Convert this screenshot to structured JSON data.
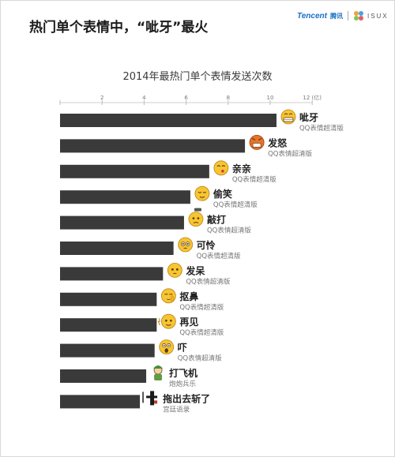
{
  "page": {
    "title": "热门单个表情中，“呲牙”最火",
    "brand_tencent": "Tencent",
    "brand_tencent_cn": "腾讯",
    "brand_isux": "ISUX"
  },
  "chart_data": {
    "type": "bar",
    "orientation": "horizontal",
    "title": "2014年最热门单个表情发送次数",
    "unit": "(亿)",
    "xlim": [
      0,
      12
    ],
    "ticks": [
      2,
      4,
      6,
      8,
      10,
      12
    ],
    "bar_color": "#3a3a3a",
    "categories": [
      "呲牙",
      "发怒",
      "亲亲",
      "偷笑",
      "敲打",
      "可怜",
      "发呆",
      "抠鼻",
      "再见",
      "吓",
      "打飞机",
      "拖出去斩了"
    ],
    "sublabels": [
      "QQ表情超清版",
      "QQ表情超清版",
      "QQ表情超清版",
      "QQ表情超清版",
      "QQ表情超清版",
      "QQ表情超清版",
      "QQ表情超清版",
      "QQ表情超清版",
      "QQ表情超清版",
      "QQ表情超清版",
      "炮炮兵乐",
      "宫廷语录"
    ],
    "icons": [
      "grin-face-icon",
      "angry-face-icon",
      "kiss-face-icon",
      "snicker-face-icon",
      "knock-face-icon",
      "pitiful-face-icon",
      "blank-face-icon",
      "nose-pick-face-icon",
      "bye-face-icon",
      "scared-face-icon",
      "pao-soldier-icon",
      "execution-calligraphy-icon"
    ],
    "values": [
      10.3,
      8.8,
      7.1,
      6.2,
      5.9,
      5.4,
      4.9,
      4.6,
      4.6,
      4.5,
      4.1,
      3.8
    ]
  }
}
